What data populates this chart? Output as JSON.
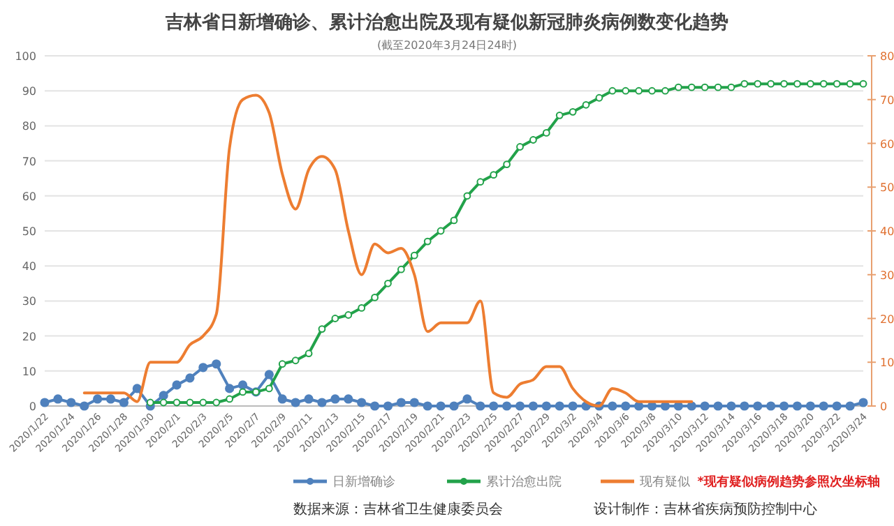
{
  "chart_data": {
    "type": "line",
    "title": "吉林省日新增确诊、累计治愈出院及现有疑似新冠肺炎病例数变化趋势",
    "subtitle": "(截至2020年3月24日24时)",
    "categories": [
      "2020/1/22",
      null,
      "2020/1/24",
      null,
      "2020/1/26",
      null,
      "2020/1/28",
      null,
      "2020/1/30",
      null,
      "2020/2/1",
      null,
      "2020/2/3",
      null,
      "2020/2/5",
      null,
      "2020/2/7",
      null,
      "2020/2/9",
      null,
      "2020/2/11",
      null,
      "2020/2/13",
      null,
      "2020/2/15",
      null,
      "2020/2/17",
      null,
      "2020/2/19",
      null,
      "2020/2/21",
      null,
      "2020/2/23",
      null,
      "2020/2/25",
      null,
      "2020/2/27",
      null,
      "2020/2/29",
      null,
      "2020/3/2",
      null,
      "2020/3/4",
      null,
      "2020/3/6",
      null,
      "2020/3/8",
      null,
      "2020/3/10",
      null,
      "2020/3/12",
      null,
      "2020/3/14",
      null,
      "2020/3/16",
      null,
      "2020/3/18",
      null,
      "2020/3/20",
      null,
      "2020/3/22",
      null,
      "2020/3/24"
    ],
    "series": [
      {
        "name": "日新增确诊",
        "color": "#4f81bd",
        "marker": "circle",
        "values": [
          1,
          2,
          1,
          0,
          2,
          2,
          1,
          5,
          0,
          3,
          6,
          8,
          11,
          12,
          5,
          6,
          4,
          9,
          2,
          1,
          2,
          1,
          2,
          2,
          1,
          0,
          0,
          1,
          1,
          0,
          0,
          0,
          2,
          0,
          0,
          0,
          0,
          0,
          0,
          0,
          0,
          0,
          0,
          0,
          0,
          0,
          0,
          0,
          0,
          0,
          0,
          0,
          0,
          0,
          0,
          0,
          0,
          0,
          0,
          0,
          0,
          0,
          1
        ]
      },
      {
        "name": "累计治愈出院",
        "color": "#22a24a",
        "marker": "circle",
        "values": [
          null,
          null,
          null,
          null,
          null,
          null,
          null,
          null,
          1,
          1,
          1,
          1,
          1,
          1,
          2,
          4,
          4,
          5,
          12,
          13,
          15,
          22,
          25,
          26,
          28,
          31,
          35,
          39,
          43,
          47,
          50,
          53,
          60,
          64,
          66,
          69,
          74,
          76,
          78,
          83,
          84,
          86,
          88,
          90,
          90,
          90,
          90,
          90,
          91,
          91,
          91,
          91,
          91,
          92,
          92,
          92,
          92,
          92,
          92,
          92,
          92,
          92,
          92
        ]
      },
      {
        "name": "现有疑似",
        "color": "#ed7d31",
        "axis": "y2",
        "marker": "none",
        "values": [
          null,
          null,
          null,
          3,
          3,
          3,
          3,
          1,
          10,
          10,
          10,
          14,
          16,
          21,
          59,
          70,
          71,
          67,
          53,
          45,
          54,
          57,
          54,
          40,
          30,
          37,
          35,
          36,
          30,
          17,
          19,
          19,
          19,
          24,
          3,
          2,
          5,
          6,
          9,
          9,
          4,
          1,
          0,
          4,
          3,
          1,
          1,
          1,
          1,
          1,
          null,
          null,
          null,
          null,
          null,
          null,
          null,
          null,
          null,
          null,
          null,
          null,
          null
        ]
      }
    ],
    "ylim": [
      0,
      100
    ],
    "yticks": [
      0,
      10,
      20,
      30,
      40,
      50,
      60,
      70,
      80,
      90,
      100
    ],
    "y2lim": [
      0,
      80
    ],
    "y2ticks": [
      0,
      10,
      20,
      30,
      40,
      50,
      60,
      70,
      80
    ],
    "grid": "y",
    "legend": "bottom",
    "line_style": "solid",
    "annotations": [
      "*现有疑似病例趋势参照次坐标轴",
      "数据来源：吉林省卫生健康委员会",
      "设计制作：吉林省疾病预防控制中心"
    ]
  }
}
